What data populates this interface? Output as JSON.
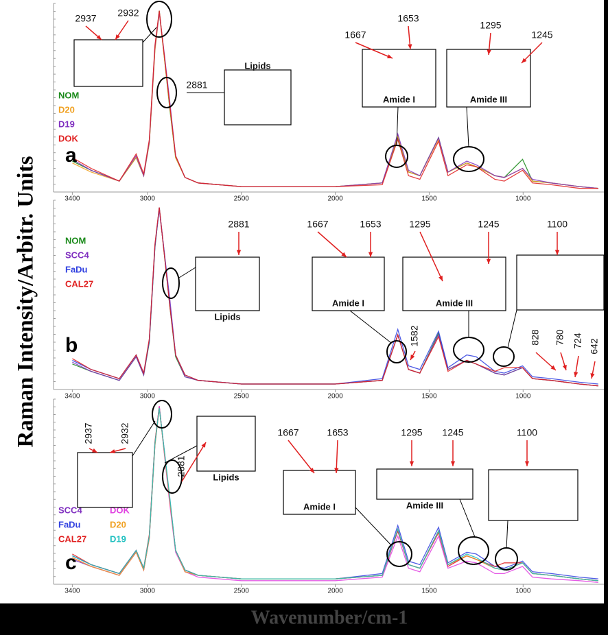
{
  "y_label": "Raman Intensity/Arbitr. Units",
  "x_label": "Wavenumber/cm-1",
  "chart_data": [
    {
      "type": "line",
      "panel_label": "a",
      "x": [
        3400,
        3300,
        3150,
        3060,
        3020,
        2990,
        2960,
        2937,
        2910,
        2881,
        2850,
        2800,
        2730,
        2500,
        2000,
        1750,
        1667,
        1610,
        1550,
        1450,
        1400,
        1300,
        1250,
        1150,
        1100,
        1003,
        950,
        850,
        700,
        600
      ],
      "xlim": [
        3500,
        570
      ],
      "xticks": [
        3400,
        3000,
        2500,
        2000,
        1500,
        1000
      ],
      "ylim": [
        0,
        104
      ],
      "series": [
        {
          "name": "NOM",
          "color": "#1a8a1a",
          "values": [
            17,
            12,
            6,
            19,
            9,
            27,
            79,
            100,
            74,
            46,
            19,
            8,
            5,
            3,
            3,
            5,
            30,
            11,
            9,
            30,
            11,
            16,
            14,
            9,
            8,
            18,
            6,
            5,
            3,
            2
          ]
        },
        {
          "name": "D20",
          "color": "#f0a020",
          "values": [
            16,
            11,
            6,
            19,
            9,
            27,
            78,
            99,
            74,
            47,
            19,
            8,
            5,
            3,
            3,
            5,
            31,
            11,
            9,
            29,
            11,
            16,
            14,
            9,
            8,
            13,
            6,
            5,
            3,
            2
          ]
        },
        {
          "name": "D19",
          "color": "#8030c0",
          "values": [
            18,
            12,
            6,
            20,
            9,
            28,
            80,
            99,
            76,
            50,
            20,
            8,
            5,
            3,
            3,
            5,
            32,
            12,
            9,
            30,
            11,
            17,
            15,
            9,
            8,
            13,
            7,
            5,
            3,
            2
          ]
        },
        {
          "name": "DOK",
          "color": "#e02020",
          "values": [
            19,
            13,
            6,
            21,
            10,
            29,
            81,
            100,
            75,
            48,
            20,
            8,
            5,
            3,
            3,
            4,
            29,
            9,
            7,
            28,
            9,
            15,
            14,
            7,
            6,
            12,
            5,
            4,
            2,
            2
          ]
        }
      ],
      "peak_labels": [
        2937,
        2932,
        2881,
        1667,
        1653,
        1295,
        1245
      ],
      "insets": [
        "Lipids",
        "Amide I",
        "Amide III"
      ],
      "legend": "upper left",
      "legend_columns": 1
    },
    {
      "type": "line",
      "panel_label": "b",
      "x": [
        3400,
        3300,
        3150,
        3060,
        3020,
        2990,
        2960,
        2937,
        2910,
        2881,
        2850,
        2800,
        2730,
        2500,
        2000,
        1750,
        1667,
        1610,
        1550,
        1450,
        1400,
        1300,
        1250,
        1150,
        1100,
        1003,
        950,
        850,
        700,
        600
      ],
      "xlim": [
        3500,
        570
      ],
      "xticks": [
        3400,
        3000,
        2500,
        2000,
        1500,
        1000
      ],
      "ylim": [
        0,
        104
      ],
      "series": [
        {
          "name": "NOM",
          "color": "#1a8a1a",
          "values": [
            14,
            10,
            5,
            18,
            8,
            26,
            78,
            100,
            74,
            46,
            18,
            7,
            5,
            3,
            3,
            5,
            30,
            11,
            9,
            31,
            11,
            16,
            14,
            9,
            8,
            12,
            6,
            5,
            3,
            2
          ]
        },
        {
          "name": "SCC4",
          "color": "#8030c0",
          "values": [
            15,
            10,
            5,
            18,
            8,
            27,
            79,
            100,
            75,
            50,
            19,
            7,
            5,
            3,
            3,
            5,
            30,
            11,
            9,
            30,
            11,
            16,
            14,
            9,
            8,
            12,
            6,
            5,
            3,
            2
          ]
        },
        {
          "name": "FaDu",
          "color": "#3040e0",
          "values": [
            16,
            11,
            6,
            19,
            9,
            27,
            79,
            99,
            75,
            47,
            19,
            8,
            5,
            3,
            3,
            6,
            33,
            13,
            11,
            32,
            12,
            19,
            18,
            10,
            9,
            13,
            7,
            6,
            4,
            3
          ]
        },
        {
          "name": "CAL27",
          "color": "#e02020",
          "values": [
            17,
            11,
            6,
            19,
            9,
            28,
            80,
            100,
            74,
            46,
            19,
            8,
            5,
            3,
            3,
            5,
            30,
            11,
            9,
            29,
            10,
            16,
            14,
            10,
            12,
            12,
            6,
            5,
            3,
            2
          ]
        }
      ],
      "peak_labels": [
        2881,
        1667,
        1653,
        1295,
        1245,
        1100,
        1582,
        828,
        780,
        724,
        642
      ],
      "insets": [
        "Lipids",
        "Amide I",
        "Amide III"
      ],
      "legend": "upper left",
      "legend_columns": 1
    },
    {
      "type": "line",
      "panel_label": "c",
      "x": [
        3400,
        3300,
        3150,
        3060,
        3020,
        2990,
        2960,
        2937,
        2910,
        2881,
        2850,
        2800,
        2730,
        2500,
        2000,
        1750,
        1667,
        1610,
        1550,
        1450,
        1400,
        1300,
        1250,
        1150,
        1100,
        1003,
        950,
        850,
        700,
        600
      ],
      "xlim": [
        3500,
        570
      ],
      "xticks": [
        3400,
        3000,
        2500,
        2000,
        1500,
        1000
      ],
      "ylim": [
        0,
        104
      ],
      "series": [
        {
          "name": "SCC4",
          "color": "#8030c0",
          "values": [
            14,
            10,
            5,
            18,
            8,
            26,
            79,
            100,
            74,
            48,
            19,
            7,
            5,
            3,
            3,
            5,
            30,
            11,
            9,
            30,
            11,
            16,
            14,
            9,
            8,
            12,
            6,
            5,
            3,
            2
          ]
        },
        {
          "name": "FaDu",
          "color": "#3040e0",
          "values": [
            16,
            11,
            6,
            19,
            9,
            27,
            79,
            99,
            75,
            47,
            19,
            8,
            5,
            3,
            3,
            6,
            33,
            13,
            11,
            32,
            12,
            18,
            17,
            10,
            9,
            13,
            7,
            6,
            4,
            3
          ]
        },
        {
          "name": "CAL27",
          "color": "#e02020",
          "values": [
            17,
            11,
            6,
            19,
            9,
            28,
            80,
            100,
            74,
            46,
            19,
            8,
            5,
            3,
            3,
            5,
            30,
            11,
            9,
            29,
            10,
            16,
            14,
            10,
            12,
            12,
            6,
            5,
            3,
            2
          ]
        },
        {
          "name": "DOK",
          "color": "#e040e0",
          "values": [
            15,
            10,
            5,
            18,
            8,
            26,
            78,
            100,
            73,
            45,
            18,
            7,
            4,
            2,
            2,
            4,
            27,
            9,
            7,
            27,
            9,
            13,
            12,
            6,
            6,
            10,
            4,
            3,
            2,
            1
          ]
        },
        {
          "name": "D20",
          "color": "#f0a020",
          "values": [
            15,
            10,
            5,
            18,
            8,
            26,
            78,
            99,
            74,
            47,
            19,
            7,
            5,
            3,
            3,
            5,
            31,
            11,
            9,
            30,
            11,
            16,
            14,
            9,
            8,
            12,
            6,
            5,
            3,
            2
          ]
        },
        {
          "name": "D19",
          "color": "#20c0c0",
          "values": [
            16,
            11,
            6,
            19,
            9,
            27,
            79,
            99,
            75,
            49,
            19,
            8,
            5,
            3,
            3,
            5,
            31,
            11,
            9,
            30,
            11,
            17,
            15,
            9,
            8,
            12,
            6,
            5,
            3,
            2
          ]
        }
      ],
      "peak_labels": [
        2937,
        2932,
        2881,
        1667,
        1653,
        1295,
        1245,
        1100
      ],
      "insets": [
        "Lipids",
        "Amide I",
        "Amide III"
      ],
      "legend": "upper left",
      "legend_columns": 2
    }
  ]
}
